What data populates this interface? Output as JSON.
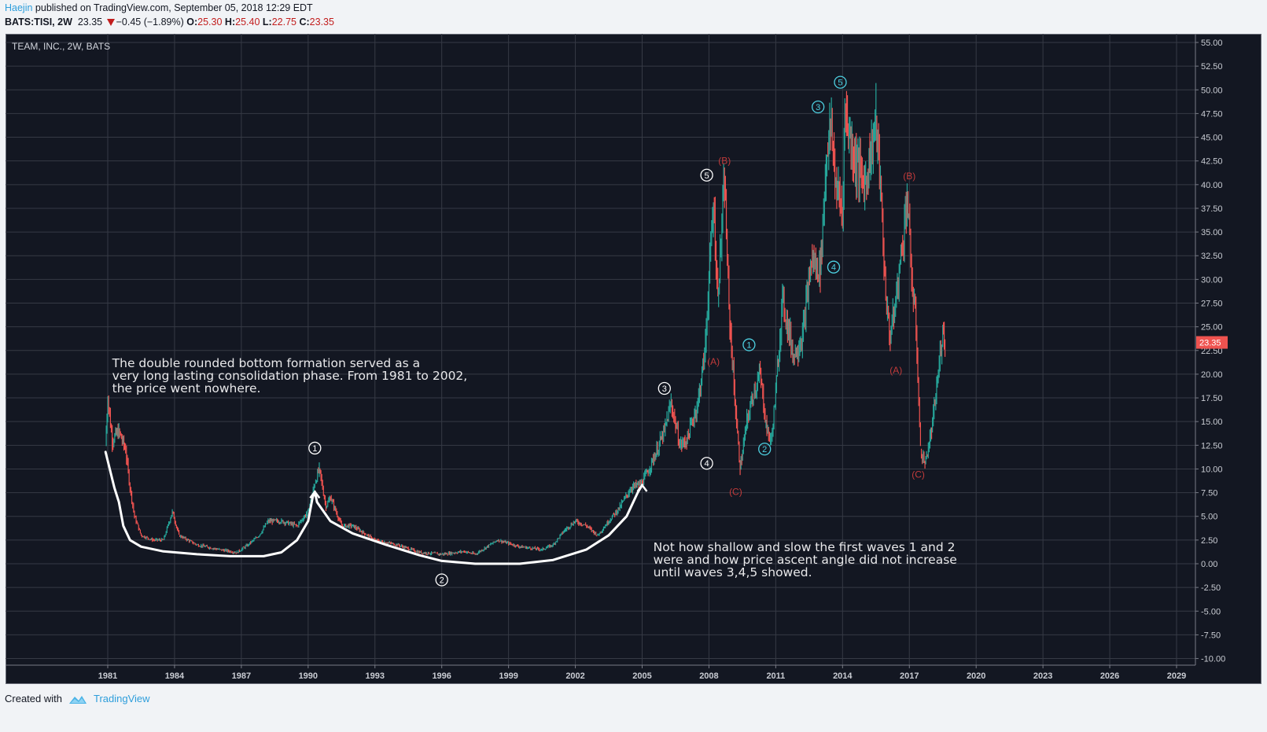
{
  "header": {
    "author": "Haejin",
    "published_text": "published on TradingView.com, September 05, 2018 12:29 EDT",
    "symbol": "BATS:TISI, 2W",
    "last": "23.35",
    "change": "−0.45 (−1.89%)",
    "open_label": "O:",
    "open": "25.30",
    "high_label": "H:",
    "high": "25.40",
    "low_label": "L:",
    "low": "22.75",
    "close_label": "C:",
    "close": "23.35"
  },
  "footer": {
    "created_with": "Created with",
    "brand": "TradingView"
  },
  "colors": {
    "up": "#26a69a",
    "down": "#ef5350",
    "background": "#131722",
    "grid": "#363a45",
    "cyan_label": "#4dd0e1",
    "red_label": "#c23b3b",
    "price_tag": "#ef5350"
  },
  "chart_data": {
    "type": "candlestick",
    "title": "TEAM, INC., 2W, BATS",
    "xlabel": "",
    "ylabel": "",
    "ylim": [
      -10,
      55
    ],
    "xlim": [
      1979.3,
      2030.0
    ],
    "y_ticks": [
      "55.00",
      "52.50",
      "50.00",
      "47.50",
      "45.00",
      "42.50",
      "40.00",
      "37.50",
      "35.00",
      "32.50",
      "30.00",
      "27.50",
      "25.00",
      "22.50",
      "20.00",
      "17.50",
      "15.00",
      "12.50",
      "10.00",
      "7.50",
      "5.00",
      "2.50",
      "0.00",
      "-2.50",
      "-5.00",
      "-7.50",
      "-10.00"
    ],
    "x_ticks": [
      "1981",
      "1984",
      "1987",
      "1990",
      "1993",
      "1996",
      "1999",
      "2002",
      "2005",
      "2008",
      "2011",
      "2014",
      "2017",
      "2020",
      "2023",
      "2026",
      "2029"
    ],
    "grid": true,
    "last_price_label": "23.35",
    "price_path": [
      [
        1980.9,
        12.5
      ],
      [
        1981.0,
        17.5
      ],
      [
        1981.2,
        13.0
      ],
      [
        1981.5,
        14.0
      ],
      [
        1981.8,
        12.0
      ],
      [
        1982.0,
        8.0
      ],
      [
        1982.2,
        5.0
      ],
      [
        1982.5,
        3.0
      ],
      [
        1983.0,
        2.5
      ],
      [
        1983.5,
        2.5
      ],
      [
        1983.9,
        5.5
      ],
      [
        1984.2,
        3.0
      ],
      [
        1985.0,
        2.0
      ],
      [
        1986.0,
        1.5
      ],
      [
        1986.8,
        1.2
      ],
      [
        1987.3,
        2.0
      ],
      [
        1987.8,
        3.0
      ],
      [
        1988.2,
        4.5
      ],
      [
        1988.8,
        4.5
      ],
      [
        1989.5,
        4.0
      ],
      [
        1990.0,
        5.5
      ],
      [
        1990.3,
        8.5
      ],
      [
        1990.5,
        10.0
      ],
      [
        1990.8,
        6.0
      ],
      [
        1991.0,
        7.0
      ],
      [
        1991.5,
        4.0
      ],
      [
        1992.0,
        4.0
      ],
      [
        1993.0,
        2.5
      ],
      [
        1994.0,
        2.0
      ],
      [
        1995.0,
        1.2
      ],
      [
        1996.0,
        1.0
      ],
      [
        1997.0,
        1.3
      ],
      [
        1997.5,
        1.0
      ],
      [
        1998.5,
        2.5
      ],
      [
        1999.5,
        1.8
      ],
      [
        2000.5,
        1.5
      ],
      [
        2001.0,
        2.0
      ],
      [
        2001.5,
        3.5
      ],
      [
        2002.0,
        4.5
      ],
      [
        2002.5,
        4.0
      ],
      [
        2003.0,
        3.0
      ],
      [
        2003.5,
        4.5
      ],
      [
        2004.0,
        6.0
      ],
      [
        2004.5,
        8.0
      ],
      [
        2005.0,
        8.5
      ],
      [
        2005.5,
        11.0
      ],
      [
        2006.0,
        14.0
      ],
      [
        2006.3,
        17.0
      ],
      [
        2006.7,
        12.5
      ],
      [
        2007.0,
        13.0
      ],
      [
        2007.5,
        17.0
      ],
      [
        2007.8,
        22.0
      ],
      [
        2008.0,
        30.0
      ],
      [
        2008.2,
        38.0
      ],
      [
        2008.4,
        28.0
      ],
      [
        2008.5,
        33.0
      ],
      [
        2008.7,
        40.0
      ],
      [
        2008.9,
        27.0
      ],
      [
        2009.2,
        16.0
      ],
      [
        2009.4,
        10.0
      ],
      [
        2009.7,
        15.0
      ],
      [
        2010.0,
        18.0
      ],
      [
        2010.3,
        20.0
      ],
      [
        2010.6,
        14.0
      ],
      [
        2010.8,
        13.0
      ],
      [
        2011.0,
        18.0
      ],
      [
        2011.3,
        28.0
      ],
      [
        2011.8,
        22.0
      ],
      [
        2012.2,
        24.0
      ],
      [
        2012.6,
        32.0
      ],
      [
        2013.0,
        31.0
      ],
      [
        2013.3,
        44.0
      ],
      [
        2013.5,
        46.0
      ],
      [
        2013.7,
        40.0
      ],
      [
        2014.0,
        37.0
      ],
      [
        2014.1,
        48.0
      ],
      [
        2014.5,
        43.0
      ],
      [
        2015.0,
        40.0
      ],
      [
        2015.3,
        44.0
      ],
      [
        2015.5,
        47.0
      ],
      [
        2015.7,
        40.0
      ],
      [
        2015.9,
        30.0
      ],
      [
        2016.1,
        24.0
      ],
      [
        2016.3,
        26.0
      ],
      [
        2016.7,
        34.0
      ],
      [
        2016.9,
        39.0
      ],
      [
        2017.1,
        30.0
      ],
      [
        2017.3,
        25.0
      ],
      [
        2017.5,
        12.0
      ],
      [
        2017.7,
        10.5
      ],
      [
        2018.0,
        14.0
      ],
      [
        2018.3,
        20.0
      ],
      [
        2018.5,
        25.0
      ],
      [
        2018.6,
        23.35
      ]
    ],
    "annotations": {
      "wave_labels_white": [
        {
          "text": "1",
          "x": 1990.3,
          "y": 12.2
        },
        {
          "text": "2",
          "x": 1996.0,
          "y": -1.7
        },
        {
          "text": "3",
          "x": 2006.0,
          "y": 18.5
        },
        {
          "text": "4",
          "x": 2007.9,
          "y": 10.6
        },
        {
          "text": "5",
          "x": 2007.9,
          "y": 41.0
        }
      ],
      "wave_labels_cyan": [
        {
          "text": "1",
          "x": 2009.8,
          "y": 23.1
        },
        {
          "text": "2",
          "x": 2010.5,
          "y": 12.1
        },
        {
          "text": "3",
          "x": 2012.9,
          "y": 48.2
        },
        {
          "text": "4",
          "x": 2013.6,
          "y": 31.3
        },
        {
          "text": "5",
          "x": 2013.9,
          "y": 50.8
        }
      ],
      "corrective_labels": [
        {
          "text": "(B)",
          "x": 2008.7,
          "y": 42.5
        },
        {
          "text": "(A)",
          "x": 2008.2,
          "y": 21.3
        },
        {
          "text": "(C)",
          "x": 2009.2,
          "y": 7.6
        },
        {
          "text": "(A)",
          "x": 2016.4,
          "y": 20.4
        },
        {
          "text": "(B)",
          "x": 2017.0,
          "y": 40.9
        },
        {
          "text": "(C)",
          "x": 2017.4,
          "y": 9.4
        }
      ],
      "notes": [
        {
          "lines": [
            "The double rounded bottom formation served as a",
            "very long lasting consolidation phase. From 1981 to 2002,",
            "the price went nowhere."
          ],
          "x": 1981.2,
          "y": 20.8
        },
        {
          "lines": [
            "Not how shallow and slow the first waves 1 and 2",
            "were and how price ascent angle did not increase",
            "until waves 3,4,5 showed."
          ],
          "x": 2005.5,
          "y": 1.4
        }
      ],
      "drawn_curve": [
        [
          1980.9,
          11.8
        ],
        [
          1981.3,
          8.0
        ],
        [
          1981.5,
          6.5
        ],
        [
          1981.7,
          4.0
        ],
        [
          1982.0,
          2.5
        ],
        [
          1982.5,
          1.8
        ],
        [
          1983.5,
          1.3
        ],
        [
          1985.0,
          1.0
        ],
        [
          1986.5,
          0.8
        ],
        [
          1988.0,
          0.8
        ],
        [
          1988.8,
          1.2
        ],
        [
          1989.5,
          2.5
        ],
        [
          1990.0,
          4.5
        ],
        [
          1990.2,
          7.0
        ],
        [
          1990.3,
          7.6
        ],
        [
          1990.4,
          6.5
        ],
        [
          1991.0,
          4.5
        ],
        [
          1992.0,
          3.2
        ],
        [
          1993.5,
          2.0
        ],
        [
          1995.0,
          0.9
        ],
        [
          1996.0,
          0.3
        ],
        [
          1997.5,
          0.0
        ],
        [
          1999.5,
          0.0
        ],
        [
          2001.0,
          0.4
        ],
        [
          2002.5,
          1.5
        ],
        [
          2003.5,
          3.0
        ],
        [
          2004.3,
          5.0
        ],
        [
          2004.8,
          7.5
        ],
        [
          2005.0,
          8.3
        ]
      ]
    }
  }
}
